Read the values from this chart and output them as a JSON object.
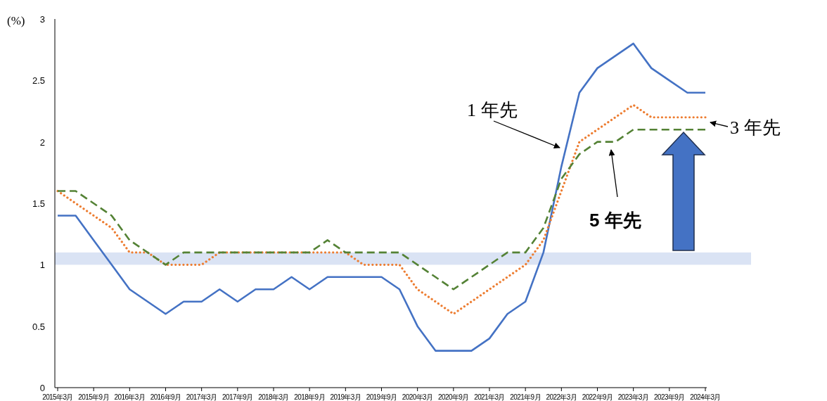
{
  "chart_data": {
    "type": "line",
    "ylabel": "(%)",
    "categories": [
      "2015年3月",
      null,
      "2015年9月",
      null,
      "2016年3月",
      null,
      "2016年9月",
      null,
      "2017年3月",
      null,
      "2017年9月",
      null,
      "2018年3月",
      null,
      "2018年9月",
      null,
      "2019年3月",
      null,
      "2019年9月",
      null,
      "2020年3月",
      null,
      "2020年9月",
      null,
      "2021年3月",
      null,
      "2021年9月",
      null,
      "2022年3月",
      null,
      "2022年9月",
      null,
      "2023年3月",
      null,
      "2023年9月",
      null,
      "2024年3月"
    ],
    "series": [
      {
        "name": "1 年先",
        "color": "#4472c4",
        "line_style": "solid",
        "values": [
          1.4,
          1.4,
          1.2,
          1.0,
          0.8,
          0.7,
          0.6,
          0.7,
          0.7,
          0.8,
          0.7,
          0.8,
          0.8,
          0.9,
          0.8,
          0.9,
          0.9,
          0.9,
          0.9,
          0.8,
          0.5,
          0.3,
          0.3,
          0.3,
          0.4,
          0.6,
          0.7,
          1.1,
          1.8,
          2.4,
          2.6,
          2.7,
          2.8,
          2.6,
          2.5,
          2.4,
          2.4
        ]
      },
      {
        "name": "3 年先",
        "color": "#ed7d31",
        "line_style": "dotted",
        "values": [
          1.6,
          1.5,
          1.4,
          1.3,
          1.1,
          1.1,
          1.0,
          1.0,
          1.0,
          1.1,
          1.1,
          1.1,
          1.1,
          1.1,
          1.1,
          1.1,
          1.1,
          1.0,
          1.0,
          1.0,
          0.8,
          0.7,
          0.6,
          0.7,
          0.8,
          0.9,
          1.0,
          1.2,
          1.6,
          2.0,
          2.1,
          2.2,
          2.3,
          2.2,
          2.2,
          2.2,
          2.2
        ]
      },
      {
        "name": "5 年先",
        "color": "#548235",
        "line_style": "dashed",
        "values": [
          1.6,
          1.6,
          1.5,
          1.4,
          1.2,
          1.1,
          1.0,
          1.1,
          1.1,
          1.1,
          1.1,
          1.1,
          1.1,
          1.1,
          1.1,
          1.2,
          1.1,
          1.1,
          1.1,
          1.1,
          1.0,
          0.9,
          0.8,
          0.9,
          1.0,
          1.1,
          1.1,
          1.3,
          1.7,
          1.9,
          2.0,
          2.0,
          2.1,
          2.1,
          2.1,
          2.1,
          2.1
        ]
      }
    ],
    "ylim": [
      0,
      3
    ],
    "yticks": [
      0,
      {
        "value": 0.5,
        "label": "0.5"
      },
      1,
      {
        "value": 1.5,
        "label": "1.5"
      },
      2,
      {
        "value": 2.5,
        "label": "2.5"
      },
      3
    ],
    "bands": [
      {
        "axis": "y",
        "from": 1.0,
        "to": 1.1,
        "color": "#d6e0f3"
      }
    ],
    "grid": false,
    "legend": false
  }
}
